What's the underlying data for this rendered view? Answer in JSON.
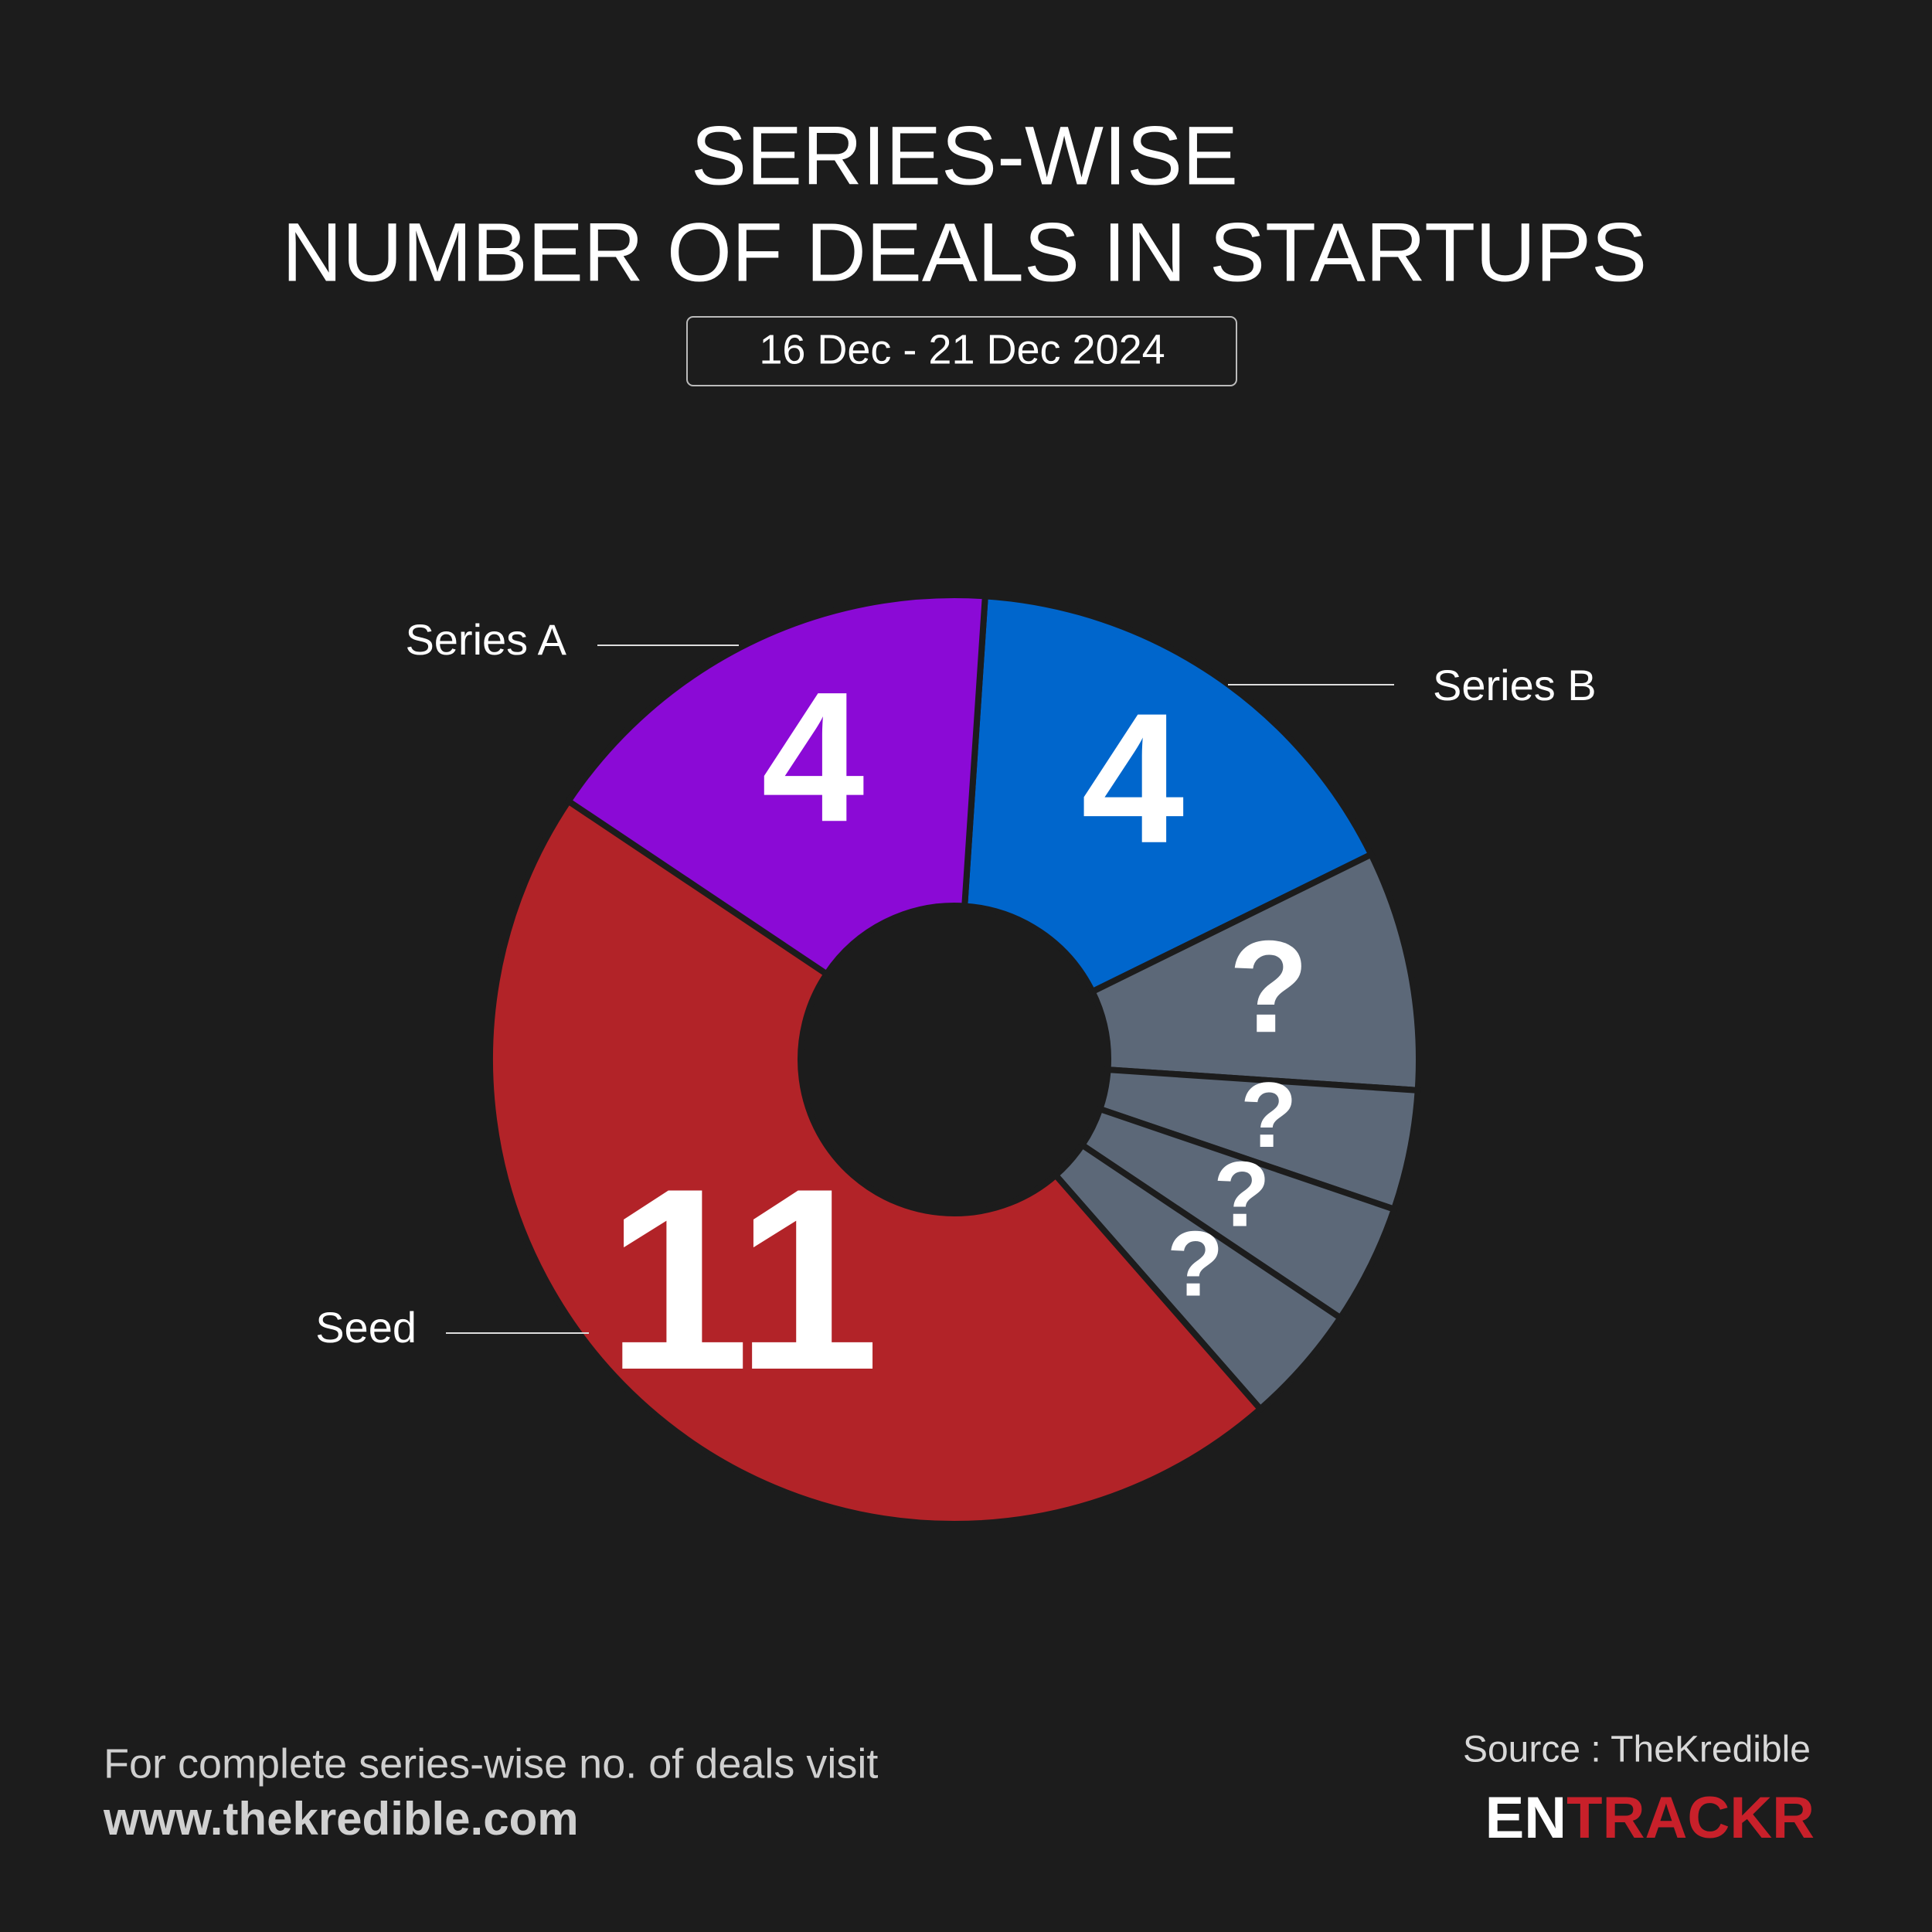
{
  "chart_data": {
    "type": "donut",
    "title": [
      "SERIES-WISE",
      "NUMBER OF DEALS IN STARTUPS"
    ],
    "subtitle": "16 Dec - 21 Dec 2024",
    "categories": [
      "Series B",
      null,
      null,
      null,
      null,
      "Seed",
      "Series A"
    ],
    "values": [
      4,
      2,
      1,
      1,
      1,
      11,
      4
    ],
    "colors": [
      "#0066cc",
      "#5c6878",
      "#5c6878",
      "#5c6878",
      "#5c6878",
      "#b22328",
      "#8b0ad6"
    ],
    "masked_label": "?"
  },
  "footer": {
    "note": "For complete series-wise no. of deals visit",
    "link": "www.thekredible.com",
    "source": "Source : TheKredible",
    "brand": [
      "EN",
      "TRACKR"
    ]
  }
}
